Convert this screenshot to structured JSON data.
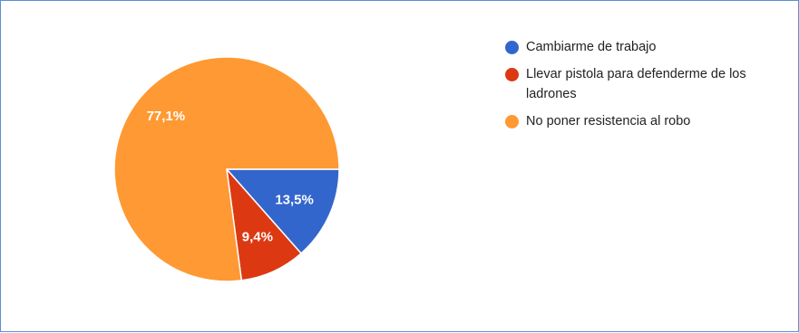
{
  "chart_data": {
    "type": "pie",
    "title": "",
    "categories": [
      "Cambiarme de trabajo",
      "Llevar pistola para defenderme de los ladrones",
      "No poner resistencia al robo"
    ],
    "values": [
      13.5,
      9.4,
      77.1
    ],
    "labels": [
      "13,5%",
      "9,4%",
      "77,1%"
    ],
    "colors": [
      "#3366cc",
      "#dc3912",
      "#ff9933"
    ],
    "legend_position": "right"
  }
}
